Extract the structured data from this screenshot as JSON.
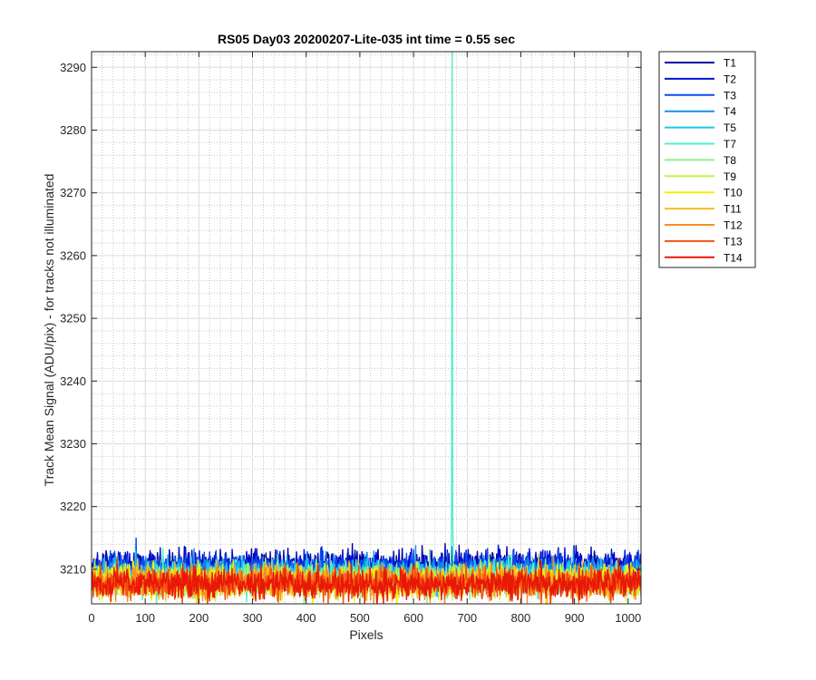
{
  "chart_data": {
    "type": "line",
    "title": "RS05 Day03 20200207-Lite-035 int time = 0.55 sec",
    "xlabel": "Pixels",
    "ylabel": "Track Mean Signal (ADU/pix) - for tracks not illuminated",
    "xlim": [
      0,
      1024
    ],
    "ylim": [
      3204.5,
      3292.5
    ],
    "x_ticks": [
      0,
      100,
      200,
      300,
      400,
      500,
      600,
      700,
      800,
      900,
      1000
    ],
    "y_ticks": [
      3210,
      3220,
      3230,
      3240,
      3250,
      3260,
      3270,
      3280,
      3290
    ],
    "grid": "major solid + minor dotted",
    "legend_position": "outside-right-top",
    "x_range": [
      1,
      1024
    ],
    "series": [
      {
        "name": "T1",
        "color": "#0000a8",
        "baseline": 3210.8,
        "noise": 1.1
      },
      {
        "name": "T2",
        "color": "#0012d6",
        "baseline": 3210.6,
        "noise": 1.1
      },
      {
        "name": "T3",
        "color": "#0a4df0",
        "baseline": 3210.1,
        "noise": 1.1
      },
      {
        "name": "T4",
        "color": "#1a8ee8",
        "baseline": 3209.6,
        "noise": 1.1
      },
      {
        "name": "T5",
        "color": "#1ec8f0",
        "baseline": 3209.3,
        "noise": 1.1
      },
      {
        "name": "T7",
        "color": "#4ff0c8",
        "baseline": 3208.6,
        "noise": 1.2,
        "spike": {
          "x": 672,
          "peak": 3295,
          "shoulder": 3219
        }
      },
      {
        "name": "T8",
        "color": "#90f088",
        "baseline": 3208.3,
        "noise": 1.2
      },
      {
        "name": "T9",
        "color": "#c8f040",
        "baseline": 3208.0,
        "noise": 1.2
      },
      {
        "name": "T10",
        "color": "#f5f000",
        "baseline": 3208.1,
        "noise": 1.2
      },
      {
        "name": "T11",
        "color": "#f5c020",
        "baseline": 3208.0,
        "noise": 1.2
      },
      {
        "name": "T12",
        "color": "#f59020",
        "baseline": 3207.9,
        "noise": 1.2
      },
      {
        "name": "T13",
        "color": "#f55010",
        "baseline": 3207.8,
        "noise": 1.2
      },
      {
        "name": "T14",
        "color": "#e81808",
        "baseline": 3207.7,
        "noise": 1.2
      }
    ]
  }
}
